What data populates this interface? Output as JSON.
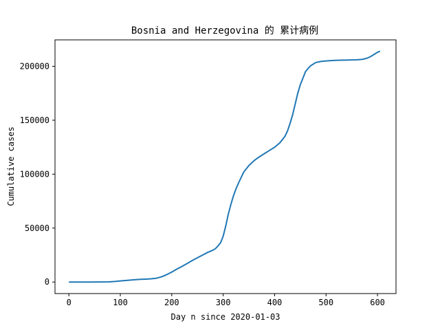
{
  "chart_data": {
    "type": "line",
    "title": "Bosnia and Herzegovina 的 累计病例",
    "xlabel": "Day n since 2020-01-03",
    "ylabel": "Cumulative cases",
    "xlim": [
      -27,
      636
    ],
    "ylim": [
      -10700,
      224500
    ],
    "xticks": [
      0,
      100,
      200,
      300,
      400,
      500,
      600
    ],
    "yticks": [
      0,
      50000,
      100000,
      150000,
      200000
    ],
    "grid": false,
    "legend": "none",
    "color": "#1f77b4",
    "series": [
      {
        "x": [
          0,
          40,
          78,
          90,
          100,
          110,
          120,
          130,
          140,
          150,
          160,
          170,
          180,
          190,
          200,
          210,
          220,
          230,
          240,
          250,
          260,
          270,
          280,
          285,
          290,
          295,
          300,
          305,
          310,
          315,
          320,
          325,
          330,
          340,
          350,
          360,
          370,
          380,
          390,
          400,
          410,
          420,
          425,
          430,
          435,
          440,
          445,
          450,
          455,
          460,
          465,
          470,
          475,
          480,
          490,
          500,
          510,
          520,
          530,
          540,
          550,
          560,
          570,
          575,
          580,
          585,
          590,
          595,
          600,
          605
        ],
        "values": [
          0,
          0,
          150,
          500,
          1000,
          1400,
          1800,
          2200,
          2500,
          2700,
          3000,
          3500,
          4800,
          6800,
          9200,
          12000,
          14500,
          17200,
          20000,
          22500,
          25000,
          27500,
          29500,
          31000,
          33500,
          36500,
          42500,
          52000,
          63000,
          72000,
          80000,
          86500,
          92000,
          102000,
          108000,
          112500,
          116000,
          119000,
          122000,
          125000,
          129000,
          135000,
          140000,
          147000,
          155000,
          165000,
          175000,
          183000,
          189000,
          195000,
          198000,
          200500,
          202000,
          203500,
          204500,
          205000,
          205300,
          205500,
          205700,
          205800,
          205900,
          206000,
          206400,
          206900,
          207600,
          208600,
          210000,
          211500,
          213000,
          214000
        ]
      }
    ]
  }
}
